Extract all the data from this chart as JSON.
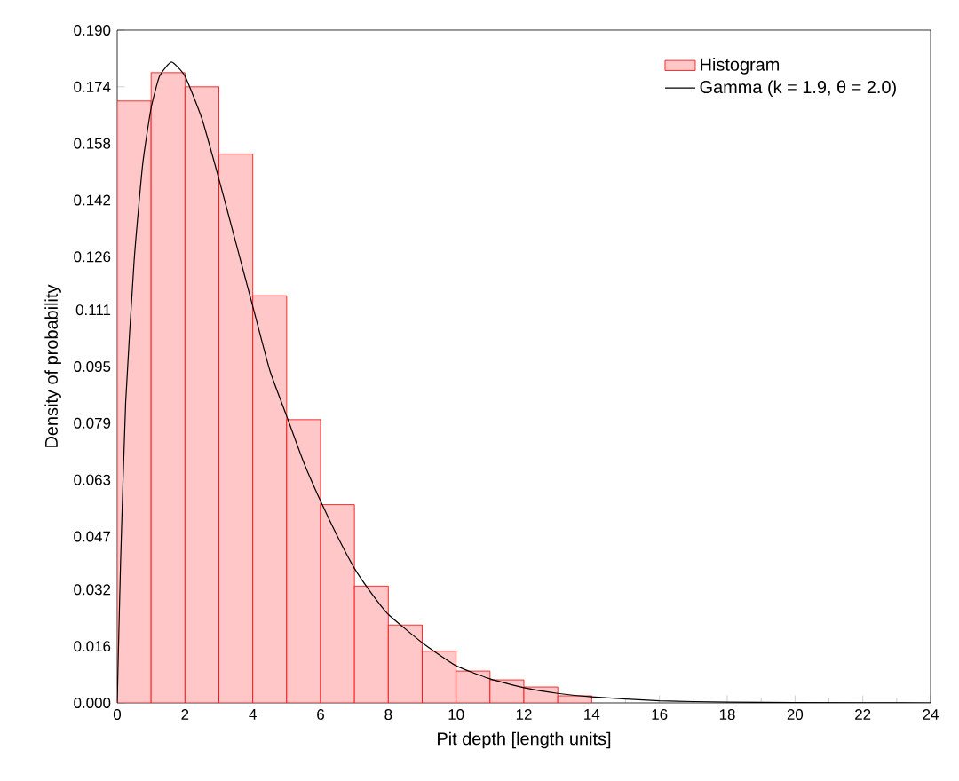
{
  "chart_data": {
    "type": "histogram",
    "xlabel": "Pit depth [length units]",
    "ylabel": "Density of probability",
    "bins": [
      0,
      1,
      2,
      3,
      4,
      5,
      6,
      7,
      8,
      9,
      10,
      11,
      12,
      13,
      14
    ],
    "series": [
      {
        "name": "Histogram",
        "color": "#ff0000",
        "values": [
          0.17,
          0.178,
          0.174,
          0.155,
          0.115,
          0.08,
          0.056,
          0.033,
          0.022,
          0.0146,
          0.009,
          0.0065,
          0.0045,
          0.002
        ]
      },
      {
        "name": "Gamma (k = 1.9, θ = 2.0)",
        "type": "line",
        "color": "#000000",
        "marker": "none",
        "line_style": "solid",
        "x": [
          0,
          0.1,
          0.25,
          0.5,
          0.75,
          1,
          1.25,
          1.6,
          2,
          2.5,
          3,
          3.5,
          4,
          4.5,
          5,
          5.5,
          6,
          6.5,
          7,
          7.5,
          8,
          9,
          10,
          11,
          12,
          13,
          14,
          16,
          18,
          20,
          24
        ],
        "values": [
          0,
          0.04,
          0.085,
          0.125,
          0.152,
          0.168,
          0.177,
          0.181,
          0.177,
          0.165,
          0.148,
          0.13,
          0.112,
          0.094,
          0.081,
          0.068,
          0.057,
          0.047,
          0.038,
          0.031,
          0.025,
          0.017,
          0.0105,
          0.0068,
          0.0043,
          0.0027,
          0.0017,
          0.0006,
          0.0002,
          0.0001,
          0
        ]
      }
    ],
    "xlim": [
      0,
      24
    ],
    "ylim": [
      0,
      0.19
    ],
    "xticks": [
      0,
      2,
      4,
      6,
      8,
      10,
      12,
      14,
      16,
      18,
      20,
      22,
      24
    ],
    "yticks": [
      {
        "value": 0,
        "label": "0.000"
      },
      0.016,
      0.032,
      0.047,
      0.063,
      0.079,
      0.095,
      0.111,
      0.126,
      0.142,
      0.158,
      0.174,
      {
        "value": 0.19,
        "label": "0.190"
      }
    ],
    "legend": "top right",
    "grid": false
  }
}
